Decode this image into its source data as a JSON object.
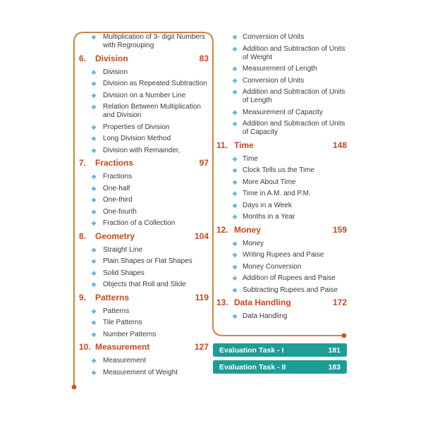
{
  "colors": {
    "background": "#ffffff",
    "heading": "#c8481d",
    "body_text": "#3d3a38",
    "bullet": "#39a0d6",
    "border_line": "#d08346",
    "border_dot": "#c25a1e",
    "banner_bg": "#1c9d96",
    "banner_text": "#ffffff"
  },
  "icons": {
    "bullet": "❖"
  },
  "toc": {
    "left_column": {
      "continuation_items": [
        "Multiplication of 3- digit Numbers\nwith Regrouping"
      ],
      "sections": [
        {
          "number": "6.",
          "title": "Division",
          "page": "83",
          "items": [
            "Division",
            "Division as Repeated Subtraction",
            "Division on a Number Line",
            "Relation Between Multiplication\nand Division",
            "Properties of Division",
            "Long Division Method",
            "Division with Remainder,"
          ]
        },
        {
          "number": "7.",
          "title": "Fractions",
          "page": "97",
          "items": [
            "Fractions",
            "One-half",
            "One-third",
            "One-fourth",
            "Fraction of a Collection"
          ]
        },
        {
          "number": "8.",
          "title": "Geometry",
          "page": "104",
          "items": [
            "Straight Line",
            "Plain Shapes or Flat Shapes",
            "Solid Shapes",
            "Objects that Roll and Slide"
          ]
        },
        {
          "number": "9.",
          "title": "Patterns",
          "page": "119",
          "items": [
            "Patterns",
            "Tile Patterns",
            "Number Patterns"
          ]
        },
        {
          "number": "10.",
          "title": "Measurement",
          "page": "127",
          "items": [
            "Measurement",
            "Measurement of Weight"
          ]
        }
      ]
    },
    "right_column": {
      "continuation_items": [
        "Conversion of Units",
        "Addition and Subtraction of Units\nof Weight",
        "Measurement of Length",
        "Conversion of Units",
        "Addition and Subtraction of Units\nof Length",
        "Measurement of Capacity",
        "Addition and Subtraction of Units\nof Capacity"
      ],
      "sections": [
        {
          "number": "11.",
          "title": "Time",
          "page": "148",
          "items": [
            "Time",
            "Clock Tells us the Time",
            "More About Time",
            "Time in A.M. and P.M.",
            "Days in a Week",
            "Months in a Year"
          ]
        },
        {
          "number": "12.",
          "title": "Money",
          "page": "159",
          "items": [
            "Money",
            "Writing Rupees and Paise",
            "Money Conversion",
            "Addition of Rupees and Paise",
            "Subtracting Rupees and Paise"
          ]
        },
        {
          "number": "13.",
          "title": "Data Handling",
          "page": "172",
          "items": [
            "Data Handling"
          ]
        }
      ]
    },
    "evaluation_tasks": [
      {
        "label": "Evaluation Task - I",
        "page": "181"
      },
      {
        "label": "Evaluation Task - II",
        "page": "183"
      }
    ]
  }
}
